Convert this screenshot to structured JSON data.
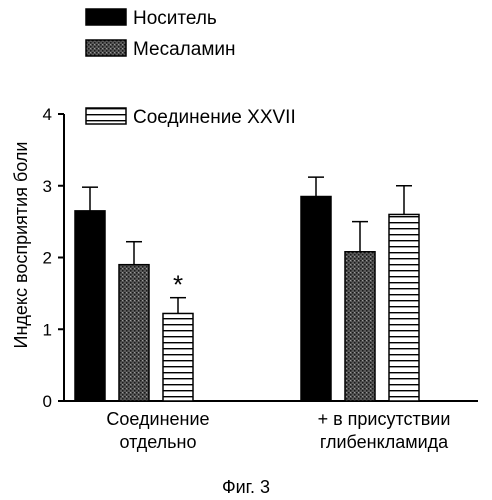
{
  "chart_data": {
    "type": "bar",
    "ylabel": "Индекс восприятия боли",
    "ylim": [
      0,
      4
    ],
    "yticks": [
      "0",
      "1",
      "2",
      "3",
      "4"
    ],
    "legend_placement": "top-left",
    "groups": [
      {
        "label_lines": [
          "Соединение",
          "отдельно"
        ]
      },
      {
        "label_lines": [
          "+ в присутствии",
          "глибенкламида"
        ]
      }
    ],
    "series": [
      {
        "name": "Носитель",
        "pattern": "solid",
        "values": [
          2.65,
          2.85
        ],
        "errors": [
          0.33,
          0.27
        ]
      },
      {
        "name": "Месаламин",
        "pattern": "stipple",
        "values": [
          1.9,
          2.08
        ],
        "errors": [
          0.32,
          0.42
        ]
      },
      {
        "name": "Соединение XXVII",
        "pattern": "hstripe",
        "values": [
          1.22,
          2.6
        ],
        "errors": [
          0.22,
          0.4
        ]
      }
    ],
    "annotations": [
      {
        "text": "*",
        "series": 2,
        "group": 0
      }
    ],
    "caption": "Фиг. 3"
  }
}
